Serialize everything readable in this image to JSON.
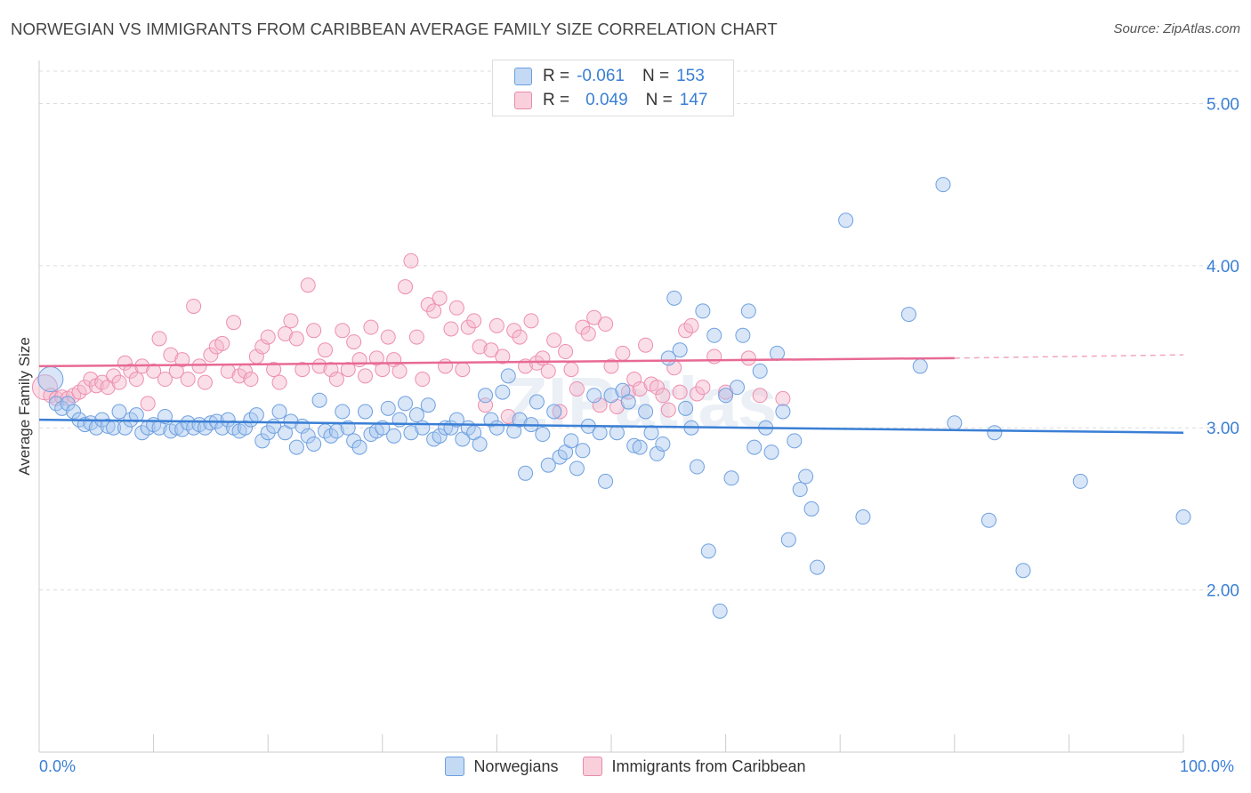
{
  "header": {
    "title": "NORWEGIAN VS IMMIGRANTS FROM CARIBBEAN AVERAGE FAMILY SIZE CORRELATION CHART",
    "source": "Source: ZipAtlas.com"
  },
  "legend": {
    "rows": [
      {
        "r_label": "R =",
        "r_value": "-0.061",
        "n_label": "N =",
        "n_value": "153"
      },
      {
        "r_label": "R =",
        "r_value": "0.049",
        "n_label": "N =",
        "n_value": "147"
      }
    ]
  },
  "watermark": "ZIPatlas",
  "chart_data": {
    "type": "scatter",
    "title": "NORWEGIAN VS IMMIGRANTS FROM CARIBBEAN AVERAGE FAMILY SIZE CORRELATION CHART",
    "xlabel": "",
    "ylabel": "Average Family Size",
    "xlim": [
      0,
      100
    ],
    "ylim": [
      1.0,
      5.2
    ],
    "x_tick_labels": [
      "0.0%",
      "100.0%"
    ],
    "y_ticks": [
      2.0,
      3.0,
      4.0,
      5.0
    ],
    "y_tick_labels": [
      "2.00",
      "3.00",
      "4.00",
      "5.00"
    ],
    "grid": true,
    "legend_position": "top-center",
    "colors": {
      "norwegians": "#a9c8f0",
      "norwegians_line": "#3a7fd5",
      "caribbean": "#f5b8cc",
      "caribbean_line": "#e86a94"
    },
    "series": [
      {
        "name": "Norwegians",
        "trend": {
          "x": [
            0,
            100
          ],
          "y": [
            3.05,
            2.97
          ]
        },
        "points": [
          [
            1,
            3.3
          ],
          [
            1.5,
            3.15
          ],
          [
            2,
            3.12
          ],
          [
            2.5,
            3.15
          ],
          [
            3,
            3.1
          ],
          [
            3.5,
            3.05
          ],
          [
            4,
            3.02
          ],
          [
            4.5,
            3.03
          ],
          [
            5,
            3.0
          ],
          [
            5.5,
            3.05
          ],
          [
            6,
            3.01
          ],
          [
            6.5,
            3.0
          ],
          [
            7,
            3.1
          ],
          [
            7.5,
            3.0
          ],
          [
            8,
            3.05
          ],
          [
            8.5,
            3.08
          ],
          [
            9,
            2.97
          ],
          [
            9.5,
            3.0
          ],
          [
            10,
            3.02
          ],
          [
            10.5,
            3.0
          ],
          [
            11,
            3.07
          ],
          [
            11.5,
            2.98
          ],
          [
            12,
            3.0
          ],
          [
            12.5,
            2.99
          ],
          [
            13,
            3.03
          ],
          [
            13.5,
            3.0
          ],
          [
            14,
            3.02
          ],
          [
            14.5,
            3.0
          ],
          [
            15,
            3.03
          ],
          [
            15.5,
            3.04
          ],
          [
            16,
            3.0
          ],
          [
            16.5,
            3.05
          ],
          [
            17,
            3.0
          ],
          [
            17.5,
            2.98
          ],
          [
            18,
            3.0
          ],
          [
            18.5,
            3.05
          ],
          [
            19,
            3.08
          ],
          [
            19.5,
            2.92
          ],
          [
            20,
            2.97
          ],
          [
            20.5,
            3.01
          ],
          [
            21,
            3.1
          ],
          [
            21.5,
            2.97
          ],
          [
            22,
            3.04
          ],
          [
            22.5,
            2.88
          ],
          [
            23,
            3.01
          ],
          [
            23.5,
            2.95
          ],
          [
            24,
            2.9
          ],
          [
            24.5,
            3.17
          ],
          [
            25,
            2.98
          ],
          [
            25.5,
            2.95
          ],
          [
            26,
            2.98
          ],
          [
            26.5,
            3.1
          ],
          [
            27,
            3.0
          ],
          [
            27.5,
            2.92
          ],
          [
            28,
            2.88
          ],
          [
            28.5,
            3.1
          ],
          [
            29,
            2.96
          ],
          [
            29.5,
            2.98
          ],
          [
            30,
            3.0
          ],
          [
            30.5,
            3.12
          ],
          [
            31,
            2.95
          ],
          [
            31.5,
            3.05
          ],
          [
            32,
            3.15
          ],
          [
            32.5,
            2.97
          ],
          [
            33,
            3.08
          ],
          [
            33.5,
            3.0
          ],
          [
            34,
            3.14
          ],
          [
            34.5,
            2.93
          ],
          [
            35,
            2.95
          ],
          [
            35.5,
            3.0
          ],
          [
            36,
            3.0
          ],
          [
            36.5,
            3.05
          ],
          [
            37,
            2.93
          ],
          [
            37.5,
            3.0
          ],
          [
            38,
            2.97
          ],
          [
            38.5,
            2.9
          ],
          [
            39,
            3.2
          ],
          [
            39.5,
            3.05
          ],
          [
            40,
            3.0
          ],
          [
            40.5,
            3.22
          ],
          [
            41,
            3.32
          ],
          [
            41.5,
            2.98
          ],
          [
            42,
            3.05
          ],
          [
            42.5,
            2.72
          ],
          [
            43,
            3.02
          ],
          [
            43.5,
            3.16
          ],
          [
            44,
            2.96
          ],
          [
            44.5,
            2.77
          ],
          [
            45,
            3.1
          ],
          [
            45.5,
            2.82
          ],
          [
            46,
            2.85
          ],
          [
            46.5,
            2.92
          ],
          [
            47,
            2.75
          ],
          [
            47.5,
            2.86
          ],
          [
            48,
            3.01
          ],
          [
            48.5,
            3.2
          ],
          [
            49,
            2.97
          ],
          [
            49.5,
            2.67
          ],
          [
            50,
            3.2
          ],
          [
            50.5,
            2.97
          ],
          [
            51,
            3.23
          ],
          [
            51.5,
            3.16
          ],
          [
            52,
            2.89
          ],
          [
            52.5,
            2.88
          ],
          [
            53,
            3.1
          ],
          [
            53.5,
            2.97
          ],
          [
            54,
            2.84
          ],
          [
            54.5,
            2.9
          ],
          [
            55,
            3.43
          ],
          [
            55.5,
            3.8
          ],
          [
            56,
            3.48
          ],
          [
            56.5,
            3.12
          ],
          [
            57,
            3.0
          ],
          [
            57.5,
            2.76
          ],
          [
            58,
            3.72
          ],
          [
            58.5,
            2.24
          ],
          [
            59,
            3.57
          ],
          [
            59.5,
            1.87
          ],
          [
            60,
            3.2
          ],
          [
            60.5,
            2.69
          ],
          [
            61,
            3.25
          ],
          [
            61.5,
            3.57
          ],
          [
            62,
            3.72
          ],
          [
            62.5,
            2.88
          ],
          [
            63,
            3.35
          ],
          [
            63.5,
            3.0
          ],
          [
            64,
            2.85
          ],
          [
            64.5,
            3.46
          ],
          [
            65,
            3.1
          ],
          [
            65.5,
            2.31
          ],
          [
            66,
            2.92
          ],
          [
            66.5,
            2.62
          ],
          [
            67,
            2.7
          ],
          [
            67.5,
            2.5
          ],
          [
            68,
            2.14
          ],
          [
            70.5,
            4.28
          ],
          [
            72,
            2.45
          ],
          [
            76,
            3.7
          ],
          [
            77,
            3.38
          ],
          [
            79,
            4.5
          ],
          [
            80,
            3.03
          ],
          [
            83,
            2.43
          ],
          [
            83.5,
            2.97
          ],
          [
            86,
            2.12
          ],
          [
            91,
            2.67
          ],
          [
            100,
            2.45
          ]
        ]
      },
      {
        "name": "Immigrants from Caribbean",
        "trend": {
          "x": [
            0,
            80
          ],
          "y": [
            3.38,
            3.43
          ]
        },
        "trend_dashed": {
          "x": [
            80,
            100
          ],
          "y": [
            3.43,
            3.45
          ]
        },
        "points": [
          [
            0.5,
            3.25
          ],
          [
            1,
            3.2
          ],
          [
            1.5,
            3.18
          ],
          [
            2,
            3.19
          ],
          [
            2.5,
            3.18
          ],
          [
            3,
            3.2
          ],
          [
            3.5,
            3.22
          ],
          [
            4,
            3.25
          ],
          [
            4.5,
            3.3
          ],
          [
            5,
            3.26
          ],
          [
            5.5,
            3.28
          ],
          [
            6,
            3.25
          ],
          [
            6.5,
            3.32
          ],
          [
            7,
            3.28
          ],
          [
            7.5,
            3.4
          ],
          [
            8,
            3.35
          ],
          [
            8.5,
            3.3
          ],
          [
            9,
            3.38
          ],
          [
            9.5,
            3.15
          ],
          [
            10,
            3.35
          ],
          [
            10.5,
            3.55
          ],
          [
            11,
            3.3
          ],
          [
            11.5,
            3.45
          ],
          [
            12,
            3.35
          ],
          [
            12.5,
            3.42
          ],
          [
            13,
            3.3
          ],
          [
            13.5,
            3.75
          ],
          [
            14,
            3.38
          ],
          [
            14.5,
            3.28
          ],
          [
            15,
            3.45
          ],
          [
            15.5,
            3.5
          ],
          [
            16,
            3.52
          ],
          [
            16.5,
            3.35
          ],
          [
            17,
            3.65
          ],
          [
            17.5,
            3.32
          ],
          [
            18,
            3.35
          ],
          [
            18.5,
            3.3
          ],
          [
            19,
            3.44
          ],
          [
            19.5,
            3.5
          ],
          [
            20,
            3.56
          ],
          [
            20.5,
            3.36
          ],
          [
            21,
            3.28
          ],
          [
            21.5,
            3.58
          ],
          [
            22,
            3.66
          ],
          [
            22.5,
            3.55
          ],
          [
            23,
            3.36
          ],
          [
            23.5,
            3.88
          ],
          [
            24,
            3.6
          ],
          [
            24.5,
            3.38
          ],
          [
            25,
            3.48
          ],
          [
            25.5,
            3.36
          ],
          [
            26,
            3.3
          ],
          [
            26.5,
            3.6
          ],
          [
            27,
            3.36
          ],
          [
            27.5,
            3.53
          ],
          [
            28,
            3.42
          ],
          [
            28.5,
            3.32
          ],
          [
            29,
            3.62
          ],
          [
            29.5,
            3.43
          ],
          [
            30,
            3.36
          ],
          [
            30.5,
            3.56
          ],
          [
            31,
            3.42
          ],
          [
            31.5,
            3.35
          ],
          [
            32,
            3.87
          ],
          [
            32.5,
            4.03
          ],
          [
            33,
            3.56
          ],
          [
            33.5,
            3.3
          ],
          [
            34,
            3.76
          ],
          [
            34.5,
            3.72
          ],
          [
            35,
            3.8
          ],
          [
            35.5,
            3.38
          ],
          [
            36,
            3.61
          ],
          [
            36.5,
            3.74
          ],
          [
            37,
            3.36
          ],
          [
            37.5,
            3.62
          ],
          [
            38,
            3.66
          ],
          [
            38.5,
            3.5
          ],
          [
            39,
            3.14
          ],
          [
            39.5,
            3.48
          ],
          [
            40,
            3.63
          ],
          [
            40.5,
            3.44
          ],
          [
            41,
            3.07
          ],
          [
            41.5,
            3.6
          ],
          [
            42,
            3.56
          ],
          [
            42.5,
            3.38
          ],
          [
            43,
            3.66
          ],
          [
            43.5,
            3.4
          ],
          [
            44,
            3.43
          ],
          [
            44.5,
            3.35
          ],
          [
            45,
            3.54
          ],
          [
            45.5,
            3.1
          ],
          [
            46,
            3.47
          ],
          [
            46.5,
            3.36
          ],
          [
            47,
            3.24
          ],
          [
            47.5,
            3.62
          ],
          [
            48,
            3.58
          ],
          [
            48.5,
            3.68
          ],
          [
            49,
            3.14
          ],
          [
            49.5,
            3.64
          ],
          [
            50,
            3.38
          ],
          [
            50.5,
            3.13
          ],
          [
            51,
            3.46
          ],
          [
            51.5,
            3.22
          ],
          [
            52,
            3.3
          ],
          [
            52.5,
            3.24
          ],
          [
            53,
            3.51
          ],
          [
            53.5,
            3.27
          ],
          [
            54,
            3.25
          ],
          [
            54.5,
            3.2
          ],
          [
            55,
            3.11
          ],
          [
            55.5,
            3.37
          ],
          [
            56,
            3.22
          ],
          [
            56.5,
            3.6
          ],
          [
            57,
            3.63
          ],
          [
            57.5,
            3.21
          ],
          [
            58,
            3.25
          ],
          [
            59,
            3.44
          ],
          [
            60,
            3.22
          ],
          [
            62,
            3.43
          ],
          [
            63,
            3.2
          ],
          [
            65,
            3.18
          ]
        ]
      }
    ]
  },
  "bottom_legend": {
    "items": [
      {
        "label": "Norwegians"
      },
      {
        "label": "Immigrants from Caribbean"
      }
    ]
  }
}
